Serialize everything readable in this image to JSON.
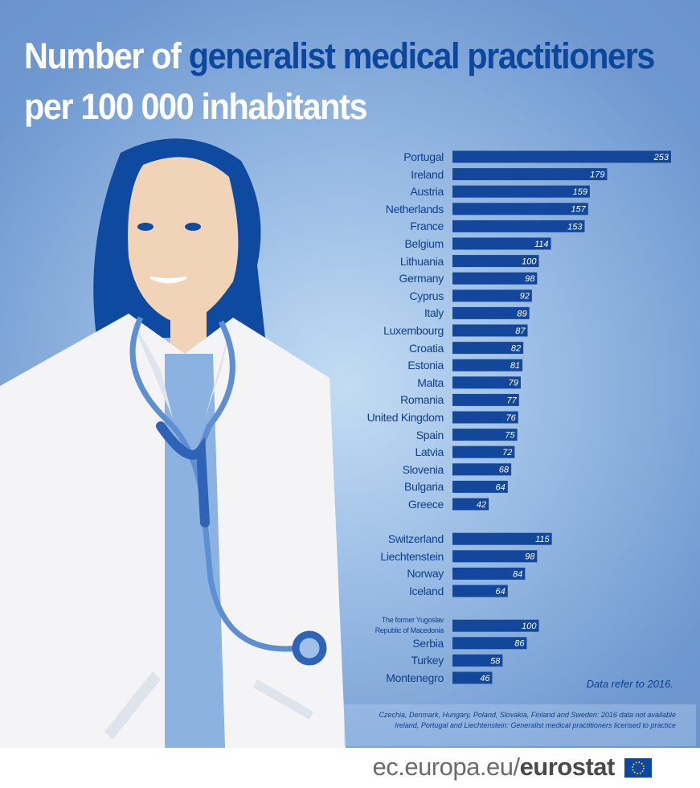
{
  "title": [
    "Number of",
    "generalist medical practitioners",
    "per 100 000 inhabitants"
  ],
  "chart_data": {
    "type": "bar",
    "orientation": "horizontal",
    "color": "#12479c",
    "categories": [
      "Portugal",
      "Ireland",
      "Austria",
      "Netherlands",
      "France",
      "Belgium",
      "Lithuania",
      "Germany",
      "Cyprus",
      "Italy",
      "Luxembourg",
      "Croatia",
      "Estonia",
      "Malta",
      "Romania",
      "United Kingdom",
      "Spain",
      "Latvia",
      "Slovenia",
      "Bulgaria",
      "Greece",
      null,
      "Switzerland",
      "Liechtenstein",
      "Norway",
      "Iceland",
      null,
      "The former Yugoslav Republic of Macedonia",
      "Serbia",
      "Turkey",
      "Montenegro"
    ],
    "values": [
      253,
      179,
      159,
      157,
      153,
      114,
      100,
      98,
      92,
      89,
      87,
      82,
      81,
      79,
      77,
      76,
      75,
      72,
      68,
      64,
      42,
      null,
      115,
      98,
      84,
      64,
      null,
      100,
      86,
      58,
      46
    ]
  },
  "note": "Data refer to 2016.",
  "footnotes": [
    "Czechia, Denmark, Hungary, Poland, Slovakia, Finland and Sweden: 2016 data not available",
    "Ireland, Portugal and Liechtenstein: Generalist medical practitioners licensed to practice"
  ],
  "footer": {
    "site": "ec.europa.eu/",
    "brand": "eurostat"
  }
}
